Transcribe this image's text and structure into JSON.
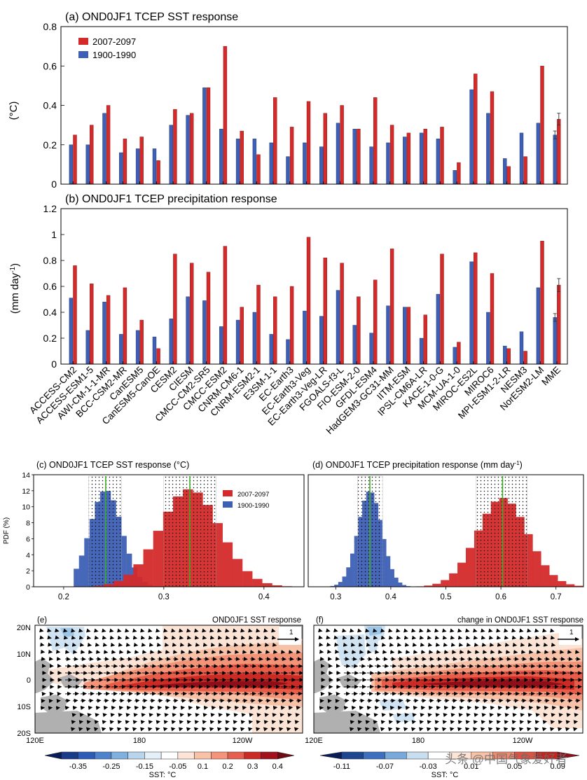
{
  "colors": {
    "future": "#d42a2a",
    "past": "#3d5fb5",
    "green": "#3fae2a",
    "land": "#b0b0b0"
  },
  "chart_data": [
    {
      "id": "a",
      "type": "bar",
      "title": "(a) OND0JF1 TCEP SST response",
      "ylabel": "(°C)",
      "ylim": [
        0,
        0.8
      ],
      "yticks": [
        "0",
        "0.2",
        "0.4",
        "0.6",
        "0.8"
      ],
      "legend": [
        "2007-2097",
        "1900-1990"
      ],
      "categories": [
        "ACCESS-CM2",
        "ACCESS-ESM1-5",
        "AWI-CM-1-1-MR",
        "BCC-CSM2-MR",
        "CanESM5",
        "CanESM5-CanOE",
        "CESM2",
        "CIESM",
        "CMCC-CM2-SR5",
        "CMCC-ESM2",
        "CNRM-CM6-1",
        "CNRM-ESM2-1",
        "E3SM-1-1",
        "EC-Earth3",
        "EC-Earth3-Veg",
        "EC-Earth3-Veg-LR",
        "FGOALS-f3-L",
        "FIO-ESM-2-0",
        "GFDL-ESM4",
        "HadGEM3-GC31-MM",
        "IITM-ESM",
        "IPSL-CM6A-LR",
        "KACE-1-0-G",
        "MCM-UA-1-0",
        "MIROC-ES2L",
        "MIROC6",
        "MPI-ESM1-2-LR",
        "NESM3",
        "NorESM2-LM",
        "MME"
      ],
      "series": [
        {
          "name": "1900-1990",
          "values": [
            0.2,
            0.2,
            0.36,
            0.16,
            0.18,
            0.18,
            0.3,
            0.35,
            0.49,
            0.28,
            0.23,
            0.23,
            0.21,
            0.14,
            0.21,
            0.19,
            0.31,
            0.28,
            0.19,
            0.21,
            0.24,
            0.26,
            0.23,
            0.07,
            0.48,
            0.36,
            0.13,
            0.26,
            0.31,
            0.25
          ]
        },
        {
          "name": "2007-2097",
          "values": [
            0.25,
            0.3,
            0.4,
            0.23,
            0.24,
            0.12,
            0.38,
            0.36,
            0.49,
            0.7,
            0.27,
            0.15,
            0.44,
            0.29,
            0.42,
            0.36,
            0.4,
            0.28,
            0.44,
            0.3,
            0.26,
            0.28,
            0.29,
            0.11,
            0.56,
            0.47,
            0.09,
            0.14,
            0.6,
            0.33
          ]
        }
      ],
      "mme_error": [
        0.02,
        0.03
      ]
    },
    {
      "id": "b",
      "type": "bar",
      "title": "(b) OND0JF1 TCEP precipitation response",
      "ylabel": "(mm day",
      "ylabel_sup": "-1",
      "ylabel_end": ")",
      "ylim": [
        0,
        1.2
      ],
      "yticks": [
        "0",
        "0.2",
        "0.4",
        "0.6",
        "0.8",
        "1",
        "1.2"
      ],
      "series": [
        {
          "name": "1900-1990",
          "values": [
            0.51,
            0.26,
            0.48,
            0.23,
            0.26,
            0.21,
            0.35,
            0.52,
            0.49,
            0.29,
            0.34,
            0.4,
            0.23,
            0.19,
            0.41,
            0.37,
            0.57,
            0.3,
            0.24,
            0.45,
            0.44,
            0.2,
            0.54,
            0.13,
            0.79,
            0.4,
            0.14,
            0.25,
            0.59,
            0.36
          ]
        },
        {
          "name": "2007-2097",
          "values": [
            0.76,
            0.62,
            0.53,
            0.59,
            0.34,
            0.12,
            0.85,
            0.78,
            0.71,
            0.91,
            0.44,
            0.61,
            0.52,
            0.6,
            0.98,
            0.82,
            0.78,
            0.52,
            0.65,
            0.89,
            0.44,
            0.38,
            0.85,
            0.17,
            0.86,
            0.7,
            0.12,
            0.1,
            0.95,
            0.61
          ]
        }
      ],
      "mme_error": [
        0.03,
        0.05
      ]
    },
    {
      "id": "c",
      "type": "histogram",
      "title": "(c) OND0JF1 TCEP SST response (°C)",
      "ylabel": "PDF (%)",
      "xlim": [
        0.17,
        0.44
      ],
      "ylim": [
        0,
        14
      ],
      "xticks": [
        "0.2",
        "0.3",
        "0.4"
      ],
      "yticks": [
        "0",
        "2",
        "4",
        "6",
        "8",
        "10",
        "12",
        "14"
      ],
      "legend": [
        "2007-2097",
        "1900-1990"
      ],
      "distributions": [
        {
          "name": "1900-1990",
          "mean": 0.242,
          "sd": 0.016,
          "peak": 12.1,
          "range": [
            0.21,
            0.3
          ],
          "shade": [
            0.225,
            0.258
          ]
        },
        {
          "name": "2007-2097",
          "mean": 0.326,
          "sd": 0.03,
          "peak": 12.2,
          "range": [
            0.23,
            0.44
          ],
          "shade": [
            0.3,
            0.352
          ]
        }
      ]
    },
    {
      "id": "d",
      "type": "histogram",
      "title": "(d) OND0JF1 TCEP precipitation response (mm day",
      "title_sup": "-1",
      "title_end": ")",
      "xlim": [
        0.25,
        0.75
      ],
      "ylim": [
        0,
        14
      ],
      "xticks": [
        "0.3",
        "0.4",
        "0.5",
        "0.6",
        "0.7"
      ],
      "distributions": [
        {
          "name": "1900-1990",
          "mean": 0.362,
          "sd": 0.022,
          "peak": 12.0,
          "range": [
            0.29,
            0.43
          ],
          "shade": [
            0.34,
            0.385
          ]
        },
        {
          "name": "2007-2097",
          "mean": 0.603,
          "sd": 0.046,
          "peak": 11.1,
          "range": [
            0.43,
            0.75
          ],
          "shade": [
            0.555,
            0.648
          ]
        }
      ]
    },
    {
      "id": "e",
      "type": "heatmap",
      "title": "(e)",
      "subtitle": "OND0JF1 SST response",
      "lat_labels": [
        "20N",
        "10N",
        "0",
        "10S",
        "20S"
      ],
      "lon_labels": [
        "120E",
        "180",
        "120W"
      ],
      "vector_ref": "1",
      "colorbar": {
        "label": "SST: °C",
        "ticks": [
          "-0.35",
          "-0.25",
          "-0.15",
          "-0.05",
          "0.1",
          "0.2",
          "0.3",
          "0.4"
        ]
      }
    },
    {
      "id": "f",
      "type": "heatmap",
      "title": "(f)",
      "subtitle": "change in OND0JF1 SST response",
      "lat_labels": [],
      "lon_labels": [
        "120E",
        "180",
        "120W"
      ],
      "vector_ref": "1",
      "colorbar": {
        "label": "SST: °C",
        "ticks": [
          "-0.11",
          "-0.07",
          "-0.03",
          "0.01",
          "0.05",
          "0.09"
        ]
      }
    }
  ],
  "watermark": "头条 @中国气象爱好者"
}
